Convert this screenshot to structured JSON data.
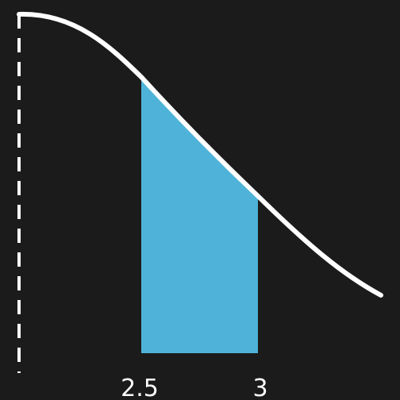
{
  "diagram": {
    "labels": {
      "left": "2.5",
      "right": "3"
    },
    "colors": {
      "background": "#1b1b1b",
      "curve": "#ffffff",
      "shaded_area": "#4fb3d9",
      "dashed_axis": "#ffffff"
    }
  }
}
